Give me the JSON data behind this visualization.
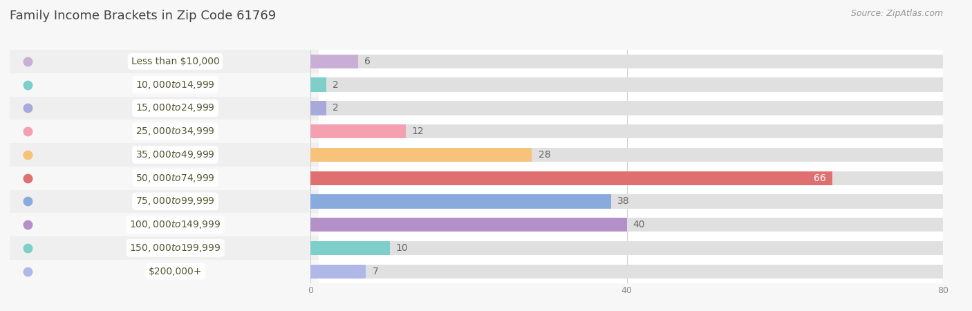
{
  "title": "Family Income Brackets in Zip Code 61769",
  "source": "Source: ZipAtlas.com",
  "categories": [
    "Less than $10,000",
    "$10,000 to $14,999",
    "$15,000 to $24,999",
    "$25,000 to $34,999",
    "$35,000 to $49,999",
    "$50,000 to $74,999",
    "$75,000 to $99,999",
    "$100,000 to $149,999",
    "$150,000 to $199,999",
    "$200,000+"
  ],
  "values": [
    6,
    2,
    2,
    12,
    28,
    66,
    38,
    40,
    10,
    7
  ],
  "bar_colors": [
    "#c9aed6",
    "#7ececa",
    "#a8a8db",
    "#f4a0b0",
    "#f7c27a",
    "#e07070",
    "#88aadd",
    "#b390c8",
    "#7ececa",
    "#b0b8e8"
  ],
  "xlim": [
    0,
    80
  ],
  "xticks": [
    0,
    40,
    80
  ],
  "background_color": "#f7f7f7",
  "row_colors": [
    "#efefef",
    "#f7f7f7"
  ],
  "bar_bg_color": "#e0e0e0",
  "title_fontsize": 13,
  "label_fontsize": 10,
  "value_fontsize": 10,
  "source_fontsize": 9
}
